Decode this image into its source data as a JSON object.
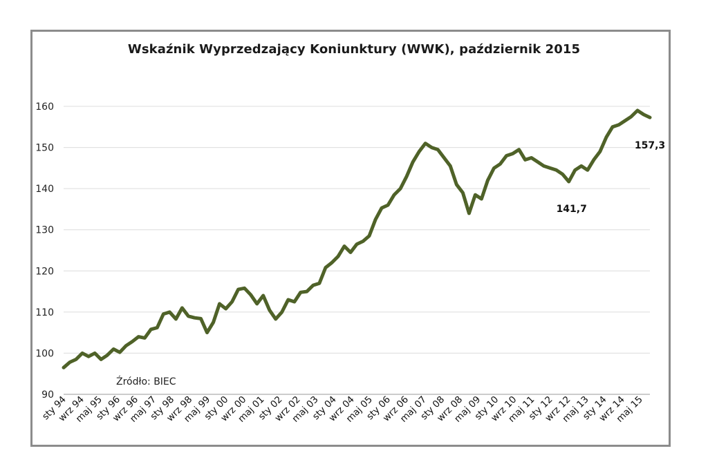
{
  "chart_data": {
    "type": "line",
    "title": "Wskaźnik Wyprzedzający Koniunktury (WWK),  październik 2015",
    "xlabel": "",
    "ylabel": "",
    "ylim": [
      90,
      160
    ],
    "yticks": [
      "90",
      "100",
      "110",
      "120",
      "130",
      "140",
      "150",
      "160"
    ],
    "grid": true,
    "x_tick_labels": [
      "sty 94",
      "wrz 94",
      "maj 95",
      "sty 96",
      "wrz 96",
      "maj 97",
      "sty 98",
      "wrz 98",
      "maj 99",
      "sty 00",
      "wrz 00",
      "maj 01",
      "sty 02",
      "wrz 02",
      "maj 03",
      "sty 04",
      "wrz 04",
      "maj 05",
      "sty 06",
      "wrz 06",
      "maj 07",
      "sty 08",
      "wrz 08",
      "maj 09",
      "sty 10",
      "wrz 10",
      "maj 11",
      "sty 12",
      "wrz 12",
      "maj 13",
      "sty 14",
      "wrz 14",
      "maj 15"
    ],
    "series": [
      {
        "color": "#4f6228",
        "values": [
          96.5,
          97.8,
          98.5,
          100.0,
          99.2,
          100.0,
          98.5,
          99.5,
          101.0,
          100.2,
          101.8,
          102.8,
          104.0,
          103.7,
          105.8,
          106.2,
          109.5,
          110.0,
          108.3,
          111.0,
          109.0,
          108.6,
          108.4,
          105.0,
          107.5,
          112.0,
          110.8,
          112.5,
          115.5,
          115.8,
          114.2,
          112.0,
          114.0,
          110.5,
          108.3,
          110.0,
          113.0,
          112.5,
          114.8,
          115.0,
          116.5,
          117.0,
          120.8,
          122.0,
          123.5,
          126.0,
          124.5,
          126.5,
          127.2,
          128.5,
          132.5,
          135.3,
          136.0,
          138.5,
          140.0,
          143.0,
          146.5,
          149.0,
          151.0,
          150.0,
          149.5,
          147.5,
          145.5,
          141.0,
          139.0,
          134.0,
          138.5,
          137.5,
          142.0,
          145.0,
          146.0,
          148.0,
          148.5,
          149.5,
          147.0,
          147.5,
          146.5,
          145.5,
          145.0,
          144.5,
          143.5,
          141.7,
          144.5,
          145.5,
          144.5,
          147.0,
          149.0,
          152.5,
          155.0,
          155.5,
          156.5,
          157.5,
          159.0,
          158.0,
          157.3
        ]
      }
    ],
    "annotations": [
      {
        "text": "141,7",
        "x_index": 81,
        "value": 141.7
      },
      {
        "text": "157,3",
        "x_index": 94,
        "value": 157.3
      }
    ],
    "source_note": "Źródło: BIEC"
  }
}
